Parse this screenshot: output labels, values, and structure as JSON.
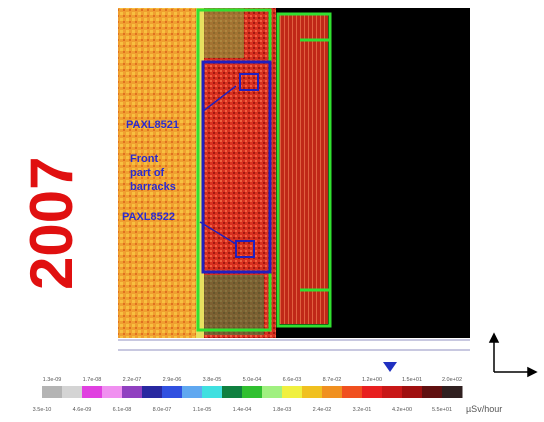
{
  "year": "2007",
  "annotations": {
    "sensor_top": "PAXL8521",
    "front_lines": [
      "Front",
      "part of",
      "barracks"
    ],
    "sensor_bottom": "PAXL8522"
  },
  "color_scale": {
    "upper_labels": [
      "1.3e-09",
      "1.7e-08",
      "2.2e-07",
      "2.9e-06",
      "3.8e-05",
      "5.0e-04",
      "6.6e-03",
      "8.7e-02",
      "1.2e+00",
      "1.5e+01",
      "2.0e+02"
    ],
    "lower_labels": [
      "3.5e-10",
      "4.6e-09",
      "6.1e-08",
      "8.0e-07",
      "1.1e-05",
      "1.4e-04",
      "1.8e-03",
      "2.4e-02",
      "3.2e-01",
      "4.2e+00",
      "5.5e+01"
    ],
    "unit": "µSv/hour"
  }
}
